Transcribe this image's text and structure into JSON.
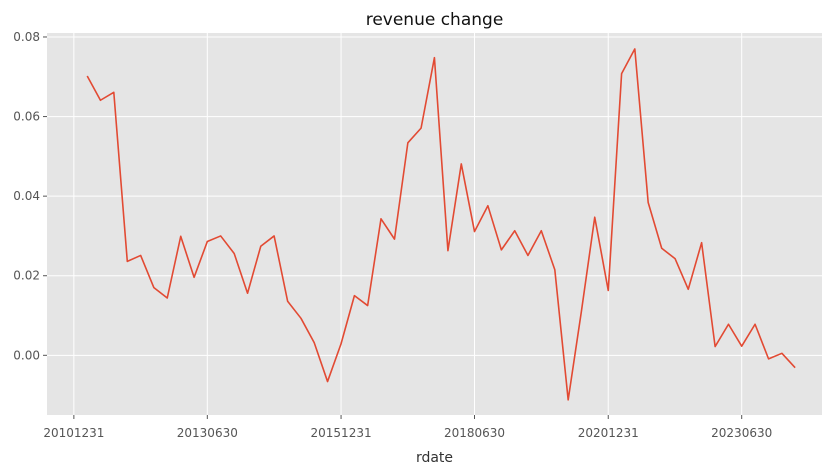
{
  "chart_data": {
    "type": "line",
    "title": "revenue change",
    "xlabel": "rdate",
    "ylabel": "",
    "grid": true,
    "x_ticks": [
      "20101231",
      "20130630",
      "20151231",
      "20180630",
      "20201231",
      "20230630"
    ],
    "y_ticks": [
      "0.00",
      "0.02",
      "0.04",
      "0.06",
      "0.08"
    ],
    "xlim": [
      20100630,
      20241231
    ],
    "ylim": [
      -0.015,
      0.081
    ],
    "series": [
      {
        "color": "#e24a33",
        "x": [
          20110331,
          20110630,
          20110930,
          20111231,
          20120331,
          20120630,
          20120930,
          20121231,
          20130331,
          20130630,
          20130930,
          20131231,
          20140331,
          20140630,
          20140930,
          20141231,
          20150331,
          20150630,
          20150930,
          20151231,
          20160331,
          20160630,
          20160930,
          20161231,
          20170331,
          20170630,
          20170930,
          20171231,
          20180331,
          20180630,
          20180930,
          20181231,
          20190331,
          20190630,
          20190930,
          20191231,
          20200331,
          20200630,
          20200930,
          20201231,
          20210331,
          20210630,
          20210930,
          20211231,
          20220331,
          20220630,
          20220930,
          20221231,
          20230331,
          20230630,
          20230930,
          20231231,
          20240331,
          20240630
        ],
        "y": [
          0.0702,
          0.0641,
          0.0661,
          0.0236,
          0.0251,
          0.017,
          0.0144,
          0.0299,
          0.0196,
          0.0286,
          0.03,
          0.0256,
          0.0156,
          0.0274,
          0.03,
          0.0136,
          0.0093,
          0.0032,
          -0.0066,
          0.0029,
          0.015,
          0.0125,
          0.0343,
          0.0292,
          0.0534,
          0.0571,
          0.0748,
          0.0263,
          0.0481,
          0.0311,
          0.0376,
          0.0265,
          0.0313,
          0.0251,
          0.0313,
          0.0215,
          -0.0112,
          0.011,
          0.0347,
          0.0163,
          0.0708,
          0.077,
          0.0384,
          0.0269,
          0.0243,
          0.0166,
          0.0283,
          0.0022,
          0.0078,
          0.0023,
          0.0078,
          -0.0009,
          0.0005,
          -0.0031
        ]
      }
    ]
  }
}
